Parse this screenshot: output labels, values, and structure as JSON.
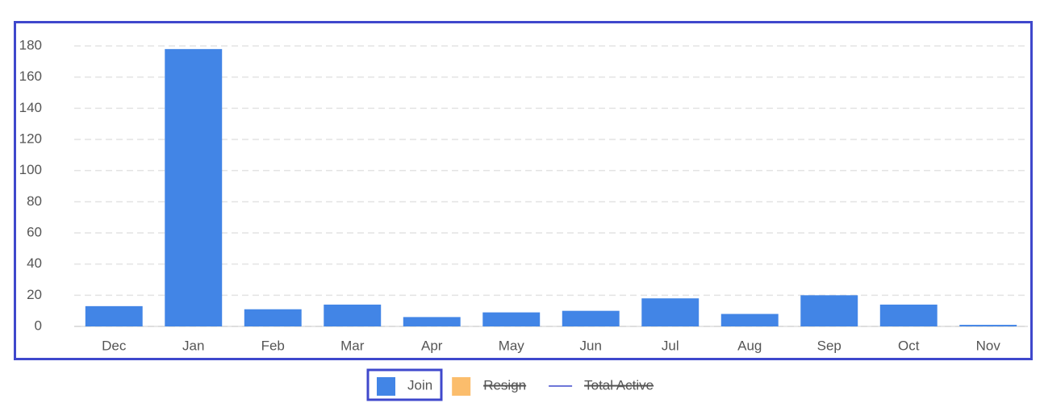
{
  "chart_data": {
    "type": "bar",
    "categories": [
      "Dec",
      "Jan",
      "Feb",
      "Mar",
      "Apr",
      "May",
      "Jun",
      "Jul",
      "Aug",
      "Sep",
      "Oct",
      "Nov"
    ],
    "series": [
      {
        "name": "Join",
        "color": "#4285e6",
        "values": [
          13,
          178,
          11,
          14,
          6,
          9,
          10,
          18,
          8,
          20,
          14,
          1
        ]
      }
    ],
    "hidden_series": [
      {
        "name": "Resign",
        "color": "#fbbd6c",
        "kind": "box"
      },
      {
        "name": "Total Active",
        "color": "#3f48cc",
        "kind": "line"
      }
    ],
    "ylim": [
      0,
      180
    ],
    "yticks": [
      0,
      20,
      40,
      60,
      80,
      100,
      120,
      140,
      160,
      180
    ],
    "grid": true,
    "legend": "bottom"
  }
}
